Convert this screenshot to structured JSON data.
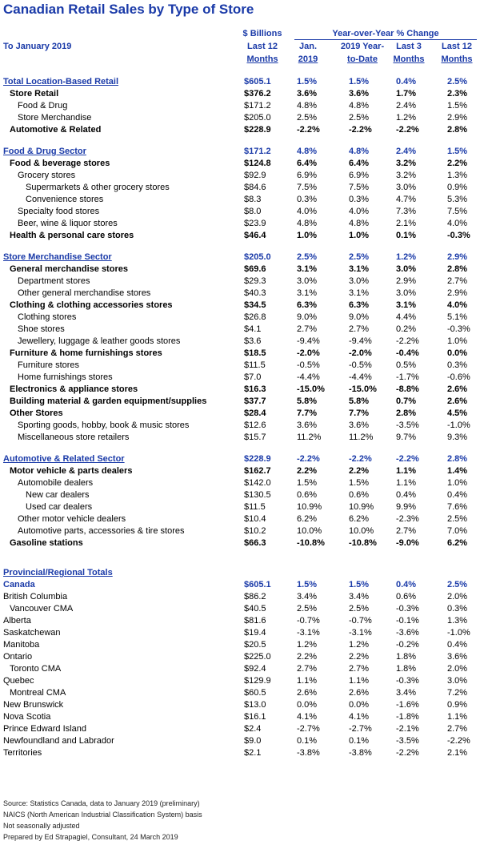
{
  "title": "Canadian Retail Sales by Type of Store",
  "header": {
    "as_of": "To January 2019",
    "col_value_line1": "$ Billions",
    "col_value_line2": "Last 12",
    "col_value_line3": "Months",
    "yoy_title": "Year-over-Year % Change",
    "col_jan_line1": "Jan.",
    "col_jan_line2": "2019",
    "col_ytd_line1": "2019 Year-",
    "col_ytd_line2": "to-Date",
    "col_l3_line1": "Last 3",
    "col_l3_line2": "Months",
    "col_l12_line1": "Last 12",
    "col_l12_line2": "Months"
  },
  "rows": [
    {
      "type": "sec",
      "indent": 0,
      "label": "Total Location-Based Retail",
      "v": "$605.1",
      "jan": "1.5%",
      "ytd": "1.5%",
      "l3": "0.4%",
      "l12": "2.5%"
    },
    {
      "type": "bold",
      "indent": 1,
      "label": "Store Retail",
      "v": "$376.2",
      "jan": "3.6%",
      "ytd": "3.6%",
      "l3": "1.7%",
      "l12": "2.3%"
    },
    {
      "type": "norm",
      "indent": 2,
      "label": "Food & Drug",
      "v": "$171.2",
      "jan": "4.8%",
      "ytd": "4.8%",
      "l3": "2.4%",
      "l12": "1.5%"
    },
    {
      "type": "norm",
      "indent": 2,
      "label": "Store Merchandise",
      "v": "$205.0",
      "jan": "2.5%",
      "ytd": "2.5%",
      "l3": "1.2%",
      "l12": "2.9%"
    },
    {
      "type": "bold",
      "indent": 1,
      "label": "Automotive & Related",
      "v": "$228.9",
      "jan": "-2.2%",
      "ytd": "-2.2%",
      "l3": "-2.2%",
      "l12": "2.8%"
    },
    {
      "type": "gap-m"
    },
    {
      "type": "sec",
      "indent": 0,
      "label": "Food & Drug Sector",
      "v": "$171.2",
      "jan": "4.8%",
      "ytd": "4.8%",
      "l3": "2.4%",
      "l12": "1.5%"
    },
    {
      "type": "bold",
      "indent": 1,
      "label": "Food & beverage stores",
      "v": "$124.8",
      "jan": "6.4%",
      "ytd": "6.4%",
      "l3": "3.2%",
      "l12": "2.2%"
    },
    {
      "type": "norm",
      "indent": 2,
      "label": "Grocery stores",
      "v": "$92.9",
      "jan": "6.9%",
      "ytd": "6.9%",
      "l3": "3.2%",
      "l12": "1.3%"
    },
    {
      "type": "norm",
      "indent": 3,
      "label": "Supermarkets & other grocery stores",
      "v": "$84.6",
      "jan": "7.5%",
      "ytd": "7.5%",
      "l3": "3.0%",
      "l12": "0.9%"
    },
    {
      "type": "norm",
      "indent": 3,
      "label": "Convenience stores",
      "v": "$8.3",
      "jan": "0.3%",
      "ytd": "0.3%",
      "l3": "4.7%",
      "l12": "5.3%"
    },
    {
      "type": "norm",
      "indent": 2,
      "label": "Specialty food stores",
      "v": "$8.0",
      "jan": "4.0%",
      "ytd": "4.0%",
      "l3": "7.3%",
      "l12": "7.5%"
    },
    {
      "type": "norm",
      "indent": 2,
      "label": "Beer, wine & liquor stores",
      "v": "$23.9",
      "jan": "4.8%",
      "ytd": "4.8%",
      "l3": "2.1%",
      "l12": "4.0%"
    },
    {
      "type": "bold",
      "indent": 1,
      "label": "Health & personal care stores",
      "v": "$46.4",
      "jan": "1.0%",
      "ytd": "1.0%",
      "l3": "0.1%",
      "l12": "-0.3%"
    },
    {
      "type": "gap-m"
    },
    {
      "type": "sec",
      "indent": 0,
      "label": "Store Merchandise Sector",
      "v": "$205.0",
      "jan": "2.5%",
      "ytd": "2.5%",
      "l3": "1.2%",
      "l12": "2.9%"
    },
    {
      "type": "bold",
      "indent": 1,
      "label": "General merchandise stores",
      "v": "$69.6",
      "jan": "3.1%",
      "ytd": "3.1%",
      "l3": "3.0%",
      "l12": "2.8%"
    },
    {
      "type": "norm",
      "indent": 2,
      "label": "Department stores",
      "v": "$29.3",
      "jan": "3.0%",
      "ytd": "3.0%",
      "l3": "2.9%",
      "l12": "2.7%"
    },
    {
      "type": "norm",
      "indent": 2,
      "label": "Other general merchandise stores",
      "v": "$40.3",
      "jan": "3.1%",
      "ytd": "3.1%",
      "l3": "3.0%",
      "l12": "2.9%"
    },
    {
      "type": "bold",
      "indent": 1,
      "label": "Clothing & clothing accessories stores",
      "v": "$34.5",
      "jan": "6.3%",
      "ytd": "6.3%",
      "l3": "3.1%",
      "l12": "4.0%"
    },
    {
      "type": "norm",
      "indent": 2,
      "label": "Clothing stores",
      "v": "$26.8",
      "jan": "9.0%",
      "ytd": "9.0%",
      "l3": "4.4%",
      "l12": "5.1%"
    },
    {
      "type": "norm",
      "indent": 2,
      "label": "Shoe stores",
      "v": "$4.1",
      "jan": "2.7%",
      "ytd": "2.7%",
      "l3": "0.2%",
      "l12": "-0.3%"
    },
    {
      "type": "norm",
      "indent": 2,
      "label": "Jewellery, luggage & leather goods stores",
      "v": "$3.6",
      "jan": "-9.4%",
      "ytd": "-9.4%",
      "l3": "-2.2%",
      "l12": "1.0%"
    },
    {
      "type": "bold",
      "indent": 1,
      "label": "Furniture & home furnishings stores",
      "v": "$18.5",
      "jan": "-2.0%",
      "ytd": "-2.0%",
      "l3": "-0.4%",
      "l12": "0.0%"
    },
    {
      "type": "norm",
      "indent": 2,
      "label": "Furniture stores",
      "v": "$11.5",
      "jan": "-0.5%",
      "ytd": "-0.5%",
      "l3": "0.5%",
      "l12": "0.3%"
    },
    {
      "type": "norm",
      "indent": 2,
      "label": "Home furnishings stores",
      "v": "$7.0",
      "jan": "-4.4%",
      "ytd": "-4.4%",
      "l3": "-1.7%",
      "l12": "-0.6%"
    },
    {
      "type": "bold",
      "indent": 1,
      "label": "Electronics & appliance stores",
      "v": "$16.3",
      "jan": "-15.0%",
      "ytd": "-15.0%",
      "l3": "-8.8%",
      "l12": "2.6%"
    },
    {
      "type": "bold",
      "indent": 1,
      "label": "Building material & garden equipment/supplies",
      "v": "$37.7",
      "jan": "5.8%",
      "ytd": "5.8%",
      "l3": "0.7%",
      "l12": "2.6%"
    },
    {
      "type": "bold",
      "indent": 1,
      "label": "Other Stores",
      "v": "$28.4",
      "jan": "7.7%",
      "ytd": "7.7%",
      "l3": "2.8%",
      "l12": "4.5%"
    },
    {
      "type": "norm",
      "indent": 2,
      "label": "Sporting goods, hobby, book & music stores",
      "v": "$12.6",
      "jan": "3.6%",
      "ytd": "3.6%",
      "l3": "-3.5%",
      "l12": "-1.0%"
    },
    {
      "type": "norm",
      "indent": 2,
      "label": "Miscellaneous store retailers",
      "v": "$15.7",
      "jan": "11.2%",
      "ytd": "11.2%",
      "l3": "9.7%",
      "l12": "9.3%"
    },
    {
      "type": "gap-m"
    },
    {
      "type": "sec",
      "indent": 0,
      "label": "Automotive & Related Sector",
      "v": "$228.9",
      "jan": "-2.2%",
      "ytd": "-2.2%",
      "l3": "-2.2%",
      "l12": "2.8%"
    },
    {
      "type": "bold",
      "indent": 1,
      "label": "Motor vehicle & parts dealers",
      "v": "$162.7",
      "jan": "2.2%",
      "ytd": "2.2%",
      "l3": "1.1%",
      "l12": "1.4%"
    },
    {
      "type": "norm",
      "indent": 2,
      "label": "Automobile dealers",
      "v": "$142.0",
      "jan": "1.5%",
      "ytd": "1.5%",
      "l3": "1.1%",
      "l12": "1.0%"
    },
    {
      "type": "norm",
      "indent": 3,
      "label": "New car dealers",
      "v": "$130.5",
      "jan": "0.6%",
      "ytd": "0.6%",
      "l3": "0.4%",
      "l12": "0.4%"
    },
    {
      "type": "norm",
      "indent": 3,
      "label": "Used car dealers",
      "v": "$11.5",
      "jan": "10.9%",
      "ytd": "10.9%",
      "l3": "9.9%",
      "l12": "7.6%"
    },
    {
      "type": "norm",
      "indent": 2,
      "label": "Other motor vehicle dealers",
      "v": "$10.4",
      "jan": "6.2%",
      "ytd": "6.2%",
      "l3": "-2.3%",
      "l12": "2.5%"
    },
    {
      "type": "norm",
      "indent": 2,
      "label": "Automotive parts, accessories & tire stores",
      "v": "$10.2",
      "jan": "10.0%",
      "ytd": "10.0%",
      "l3": "2.7%",
      "l12": "7.0%"
    },
    {
      "type": "bold",
      "indent": 1,
      "label": "Gasoline stations",
      "v": "$66.3",
      "jan": "-10.8%",
      "ytd": "-10.8%",
      "l3": "-9.0%",
      "l12": "6.2%"
    },
    {
      "type": "gap-l"
    },
    {
      "type": "sec",
      "indent": 0,
      "label": "Provincial/Regional Totals",
      "v": "",
      "jan": "",
      "ytd": "",
      "l3": "",
      "l12": ""
    },
    {
      "type": "sec",
      "indent": 0,
      "label": "Canada",
      "v": "$605.1",
      "jan": "1.5%",
      "ytd": "1.5%",
      "l3": "0.4%",
      "l12": "2.5%",
      "nounder": true
    },
    {
      "type": "norm",
      "indent": 0,
      "label": "British Columbia",
      "v": "$86.2",
      "jan": "3.4%",
      "ytd": "3.4%",
      "l3": "0.6%",
      "l12": "2.0%"
    },
    {
      "type": "norm",
      "indent": 1,
      "label": "Vancouver CMA",
      "v": "$40.5",
      "jan": "2.5%",
      "ytd": "2.5%",
      "l3": "-0.3%",
      "l12": "0.3%"
    },
    {
      "type": "norm",
      "indent": 0,
      "label": "Alberta",
      "v": "$81.6",
      "jan": "-0.7%",
      "ytd": "-0.7%",
      "l3": "-0.1%",
      "l12": "1.3%"
    },
    {
      "type": "norm",
      "indent": 0,
      "label": "Saskatchewan",
      "v": "$19.4",
      "jan": "-3.1%",
      "ytd": "-3.1%",
      "l3": "-3.6%",
      "l12": "-1.0%"
    },
    {
      "type": "norm",
      "indent": 0,
      "label": "Manitoba",
      "v": "$20.5",
      "jan": "1.2%",
      "ytd": "1.2%",
      "l3": "-0.2%",
      "l12": "0.4%"
    },
    {
      "type": "norm",
      "indent": 0,
      "label": "Ontario",
      "v": "$225.0",
      "jan": "2.2%",
      "ytd": "2.2%",
      "l3": "1.8%",
      "l12": "3.6%"
    },
    {
      "type": "norm",
      "indent": 1,
      "label": "Toronto CMA",
      "v": "$92.4",
      "jan": "2.7%",
      "ytd": "2.7%",
      "l3": "1.8%",
      "l12": "2.0%"
    },
    {
      "type": "norm",
      "indent": 0,
      "label": "Quebec",
      "v": "$129.9",
      "jan": "1.1%",
      "ytd": "1.1%",
      "l3": "-0.3%",
      "l12": "3.0%"
    },
    {
      "type": "norm",
      "indent": 1,
      "label": "Montreal CMA",
      "v": "$60.5",
      "jan": "2.6%",
      "ytd": "2.6%",
      "l3": "3.4%",
      "l12": "7.2%"
    },
    {
      "type": "norm",
      "indent": 0,
      "label": "New Brunswick",
      "v": "$13.0",
      "jan": "0.0%",
      "ytd": "0.0%",
      "l3": "-1.6%",
      "l12": "0.9%"
    },
    {
      "type": "norm",
      "indent": 0,
      "label": "Nova Scotia",
      "v": "$16.1",
      "jan": "4.1%",
      "ytd": "4.1%",
      "l3": "-1.8%",
      "l12": "1.1%"
    },
    {
      "type": "norm",
      "indent": 0,
      "label": "Prince Edward Island",
      "v": "$2.4",
      "jan": "-2.7%",
      "ytd": "-2.7%",
      "l3": "-2.1%",
      "l12": "2.7%"
    },
    {
      "type": "norm",
      "indent": 0,
      "label": "Newfoundland and Labrador",
      "v": "$9.0",
      "jan": "0.1%",
      "ytd": "0.1%",
      "l3": "-3.5%",
      "l12": "-2.2%"
    },
    {
      "type": "norm",
      "indent": 0,
      "label": "Territories",
      "v": "$2.1",
      "jan": "-3.8%",
      "ytd": "-3.8%",
      "l3": "-2.2%",
      "l12": "2.1%"
    }
  ],
  "footer": {
    "source": "Source: Statistics Canada, data to January 2019 (preliminary)",
    "naics": "NAICS (North American Industrial Classification System) basis",
    "seasonal": "Not seasonally adjusted",
    "prepared": "Prepared by Ed Strapagiel, Consultant, 24 March 2019"
  }
}
